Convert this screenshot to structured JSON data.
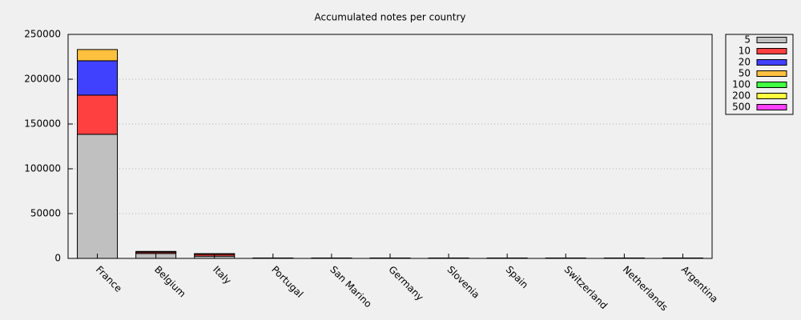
{
  "chart_data": {
    "type": "stacked-bar",
    "title": "Accumulated notes per country",
    "categories": [
      "France",
      "Belgium",
      "Italy",
      "Portugal",
      "San Marino",
      "Germany",
      "Slovenia",
      "Spain",
      "Switzerland",
      "Netherlands",
      "Argentina"
    ],
    "series": [
      {
        "name": "5",
        "color": "#c0c0c0",
        "values": [
          138500,
          5500,
          2500,
          300,
          300,
          300,
          300,
          300,
          300,
          300,
          300
        ]
      },
      {
        "name": "10",
        "color": "#ff4040",
        "values": [
          43700,
          1500,
          2000,
          200,
          200,
          200,
          200,
          200,
          200,
          200,
          200
        ]
      },
      {
        "name": "20",
        "color": "#4040ff",
        "values": [
          38400,
          500,
          500,
          0,
          0,
          0,
          0,
          0,
          0,
          0,
          0
        ]
      },
      {
        "name": "50",
        "color": "#ffc040",
        "values": [
          12500,
          300,
          300,
          0,
          0,
          0,
          0,
          0,
          0,
          0,
          0
        ]
      },
      {
        "name": "100",
        "color": "#40ff40",
        "values": [
          0,
          0,
          0,
          0,
          0,
          0,
          0,
          0,
          0,
          0,
          0
        ]
      },
      {
        "name": "200",
        "color": "#ffff40",
        "values": [
          0,
          0,
          0,
          0,
          0,
          0,
          0,
          0,
          0,
          0,
          0
        ]
      },
      {
        "name": "500",
        "color": "#ff40ff",
        "values": [
          0,
          0,
          0,
          0,
          0,
          0,
          0,
          0,
          0,
          0,
          0
        ]
      }
    ],
    "ylim": [
      0,
      250000
    ],
    "yticks": [
      0,
      50000,
      100000,
      150000,
      200000,
      250000
    ],
    "grid": true,
    "legend": "outside-top-right"
  }
}
